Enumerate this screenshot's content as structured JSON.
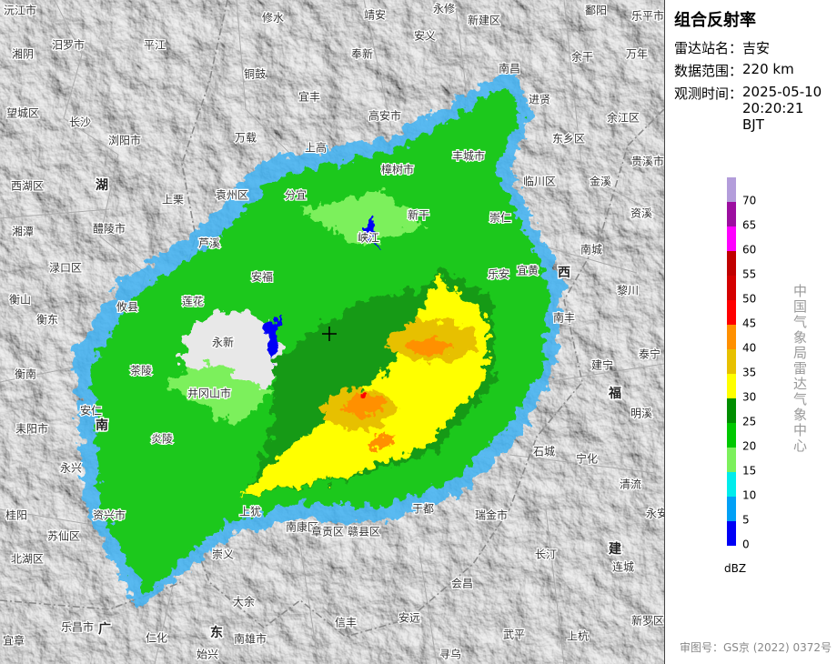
{
  "panel": {
    "title": "组合反射率",
    "fields": [
      {
        "label": "雷达站名：",
        "value": "吉安"
      },
      {
        "label": "数据范围：",
        "value": "220 km"
      },
      {
        "label": "观测时间：",
        "value": "2025-05-10 20:20:21 BJT"
      }
    ],
    "legend": {
      "unit": "dBZ",
      "values": [
        70,
        65,
        60,
        55,
        50,
        45,
        40,
        35,
        30,
        25,
        20,
        15,
        10,
        5,
        0
      ],
      "colors": [
        "#b39ddb",
        "#9c0ea0",
        "#ff00ff",
        "#c00000",
        "#d40000",
        "#ff0000",
        "#ff9000",
        "#e7c000",
        "#ffff00",
        "#008e00",
        "#00c800",
        "#7cf05c",
        "#00ecec",
        "#01a0f6",
        "#0000f6"
      ]
    },
    "source": "中国气象局雷达气象中心",
    "footer": "审图号：GS京 (2022) 0372号"
  },
  "map": {
    "provinces": [
      "湖",
      "南",
      "西",
      "福",
      "建",
      "广",
      "东"
    ],
    "places": [
      "沅江市",
      "修水",
      "靖安",
      "永修",
      "鄱阳",
      "平江",
      "安义",
      "新建区",
      "湘阴",
      "奉新",
      "余干",
      "万年",
      "南昌",
      "铜鼓",
      "进贤",
      "宜丰",
      "望城区",
      "长沙",
      "高安市",
      "余江区",
      "浏阳市",
      "万载",
      "上高",
      "东乡区",
      "丰城市",
      "贵溪市",
      "樟树市",
      "西湖区",
      "上栗",
      "袁州区",
      "分宜",
      "临川区",
      "金溪",
      "新干",
      "崇仁",
      "资溪",
      "醴陵市",
      "湘潭",
      "芦溪",
      "峡江",
      "南城",
      "渌口区",
      "安福",
      "乐安",
      "宜黄",
      "衡山",
      "攸县",
      "莲花",
      "南丰",
      "黎川",
      "衡东",
      "永新",
      "泰宁",
      "茶陵",
      "建宁",
      "衡南",
      "井冈山市",
      "安仁",
      "明溪",
      "耒阳市",
      "炎陵",
      "石城",
      "宁化",
      "永兴",
      "清流",
      "资兴市",
      "上犹",
      "于都",
      "瑞金市",
      "桂阳",
      "苏仙区",
      "南康区",
      "章贡区",
      "赣县区",
      "北湖区",
      "崇义",
      "长汀",
      "连城",
      "会昌",
      "大余",
      "新罗区",
      "乐昌市",
      "仁化",
      "信丰",
      "安远",
      "宜章",
      "南雄市",
      "武平",
      "上杭",
      "始兴",
      "寻乌",
      "汨罗市",
      "乐平市",
      "永安"
    ]
  }
}
